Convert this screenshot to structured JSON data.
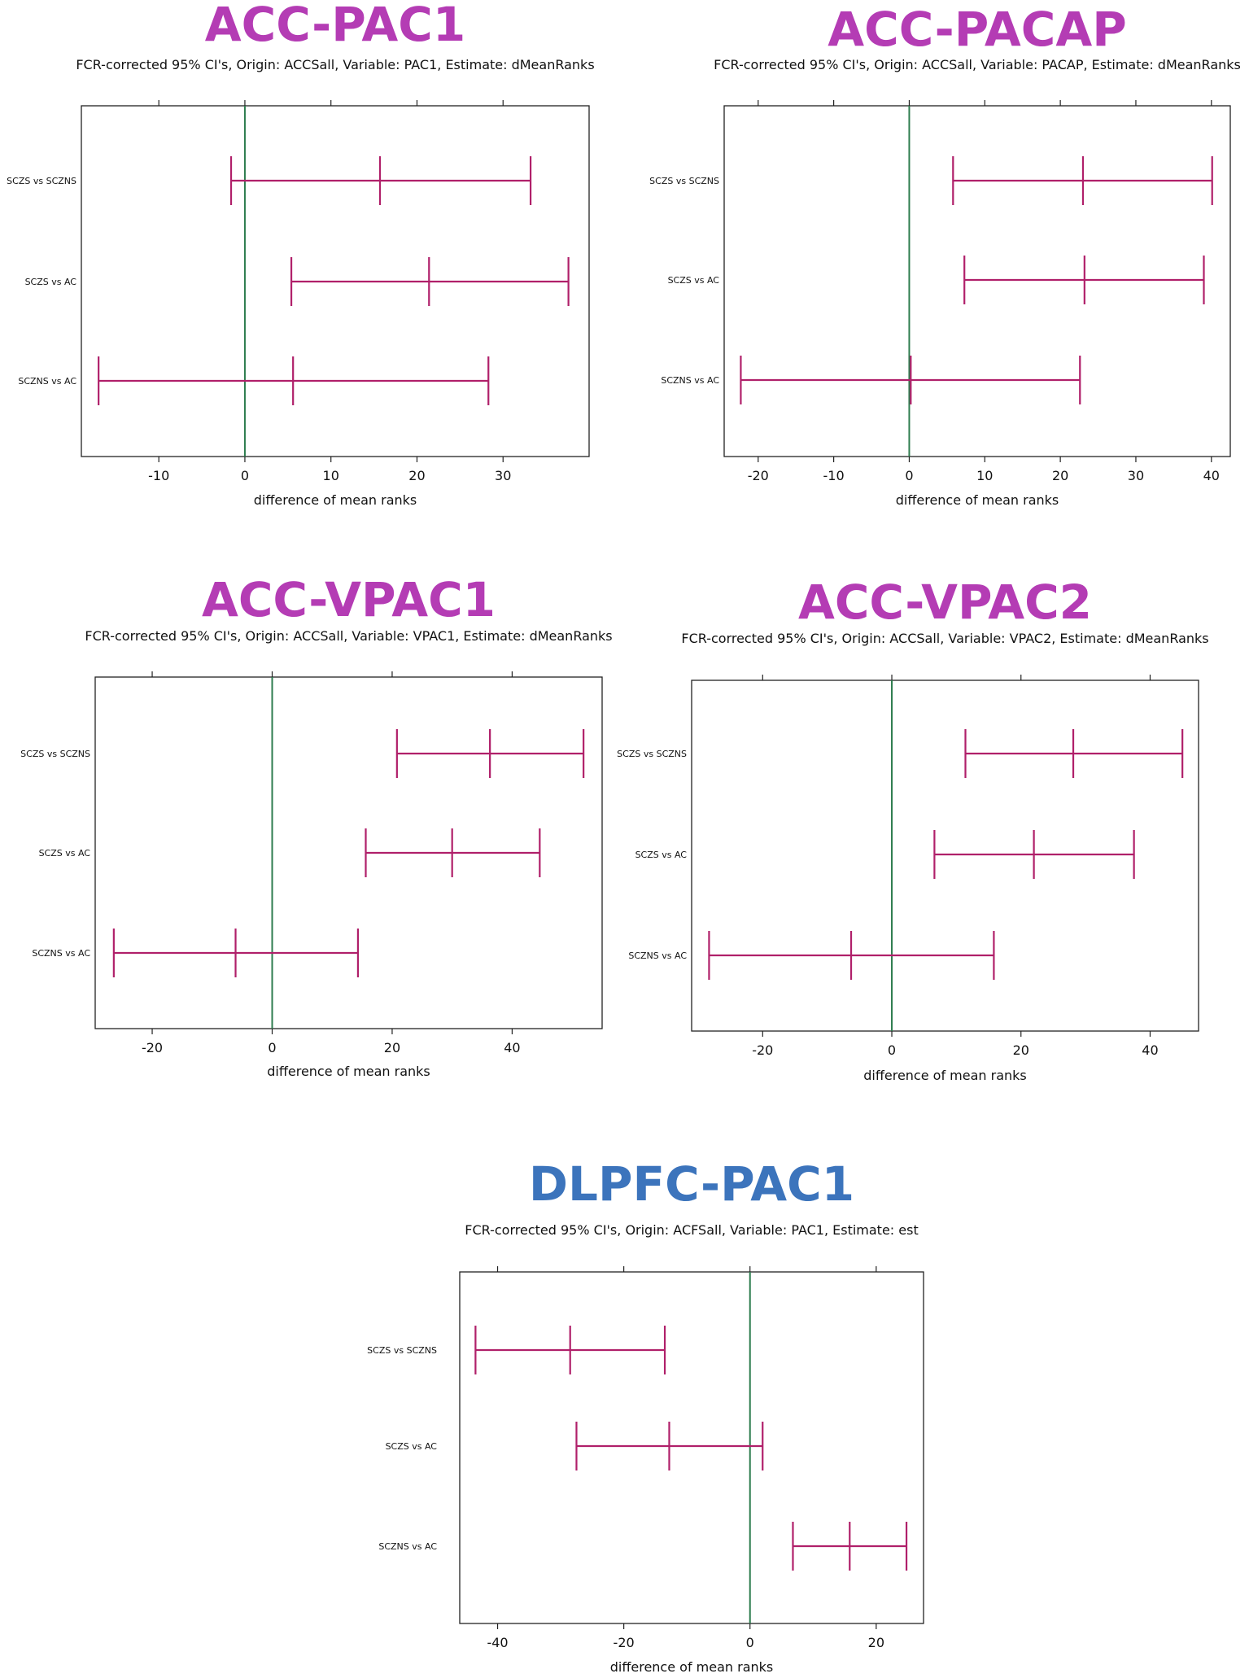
{
  "colors": {
    "acc_title": "#b43cb4",
    "dlpfc_title": "#3c74bc",
    "ci": "#b0206a",
    "zero_line": "#2e7d4f",
    "frame": "#222222"
  },
  "chart_data": [
    {
      "type": "errorbar",
      "title": "ACC-PAC1",
      "title_color": "#b43cb4",
      "subtitle": "FCR-corrected 95% CI's, Origin: ACCSall, Variable: PAC1, Estimate: dMeanRanks",
      "xlabel": "difference of mean ranks",
      "xlim": [
        -19,
        40
      ],
      "ticks": [
        -10,
        0,
        10,
        20,
        30
      ],
      "categories": [
        "SCZS vs SCZNS",
        "SCZS vs AC",
        "SCZNS vs AC"
      ],
      "series": [
        {
          "name": "SCZS vs SCZNS",
          "low": -1.6,
          "est": 15.7,
          "high": 33.2
        },
        {
          "name": "SCZS vs AC",
          "low": 5.4,
          "est": 21.4,
          "high": 37.6
        },
        {
          "name": "SCZNS vs AC",
          "low": -17.0,
          "est": 5.6,
          "high": 28.3
        }
      ]
    },
    {
      "type": "errorbar",
      "title": "ACC-PACAP",
      "title_color": "#b43cb4",
      "subtitle": "FCR-corrected 95% CI's, Origin: ACCSall, Variable: PACAP, Estimate: dMeanRanks",
      "xlabel": "difference of mean ranks",
      "xlim": [
        -24.5,
        42.5
      ],
      "ticks": [
        -20,
        -10,
        0,
        10,
        20,
        30,
        40
      ],
      "categories": [
        "SCZS vs SCZNS",
        "SCZS vs AC",
        "SCZNS vs AC"
      ],
      "series": [
        {
          "name": "SCZS vs SCZNS",
          "low": 5.8,
          "est": 23.0,
          "high": 40.1
        },
        {
          "name": "SCZS vs AC",
          "low": 7.3,
          "est": 23.2,
          "high": 39.0
        },
        {
          "name": "SCZNS vs AC",
          "low": -22.3,
          "est": 0.2,
          "high": 22.6
        }
      ]
    },
    {
      "type": "errorbar",
      "title": "ACC-VPAC1",
      "title_color": "#b43cb4",
      "subtitle": "FCR-corrected 95% CI's, Origin: ACCSall, Variable: VPAC1, Estimate: dMeanRanks",
      "xlabel": "difference of mean ranks",
      "xlim": [
        -29.5,
        55
      ],
      "ticks": [
        -20,
        0,
        20,
        40
      ],
      "categories": [
        "SCZS vs SCZNS",
        "SCZS vs AC",
        "SCZNS vs AC"
      ],
      "series": [
        {
          "name": "SCZS vs SCZNS",
          "low": 20.8,
          "est": 36.3,
          "high": 51.9
        },
        {
          "name": "SCZS vs AC",
          "low": 15.6,
          "est": 30.0,
          "high": 44.6
        },
        {
          "name": "SCZNS vs AC",
          "low": -26.4,
          "est": -6.1,
          "high": 14.3
        }
      ]
    },
    {
      "type": "errorbar",
      "title": "ACC-VPAC2",
      "title_color": "#b43cb4",
      "subtitle": "FCR-corrected 95% CI's, Origin: ACCSall, Variable: VPAC2, Estimate: dMeanRanks",
      "xlabel": "difference of mean ranks",
      "xlim": [
        -31,
        47.5
      ],
      "ticks": [
        -20,
        0,
        20,
        40
      ],
      "categories": [
        "SCZS vs SCZNS",
        "SCZS vs AC",
        "SCZNS vs AC"
      ],
      "series": [
        {
          "name": "SCZS vs SCZNS",
          "low": 11.4,
          "est": 28.1,
          "high": 45.0
        },
        {
          "name": "SCZS vs AC",
          "low": 6.6,
          "est": 22.0,
          "high": 37.5
        },
        {
          "name": "SCZNS vs AC",
          "low": -28.3,
          "est": -6.3,
          "high": 15.8
        }
      ]
    },
    {
      "type": "errorbar",
      "title": "DLPFC-PAC1",
      "title_color": "#3c74bc",
      "subtitle": "FCR-corrected 95% CI's, Origin: ACFSall, Variable: PAC1, Estimate: est",
      "xlabel": "difference of mean ranks",
      "xlim": [
        -46,
        27.5
      ],
      "ticks": [
        -40,
        -20,
        0,
        20
      ],
      "categories": [
        "SCZS vs SCZNS",
        "SCZS vs AC",
        "SCZNS vs AC"
      ],
      "series": [
        {
          "name": "SCZS vs SCZNS",
          "low": -43.5,
          "est": -28.5,
          "high": -13.5
        },
        {
          "name": "SCZS vs AC",
          "low": -27.5,
          "est": -12.8,
          "high": 2.0
        },
        {
          "name": "SCZNS vs AC",
          "low": 6.8,
          "est": 15.8,
          "high": 24.8
        }
      ]
    }
  ]
}
